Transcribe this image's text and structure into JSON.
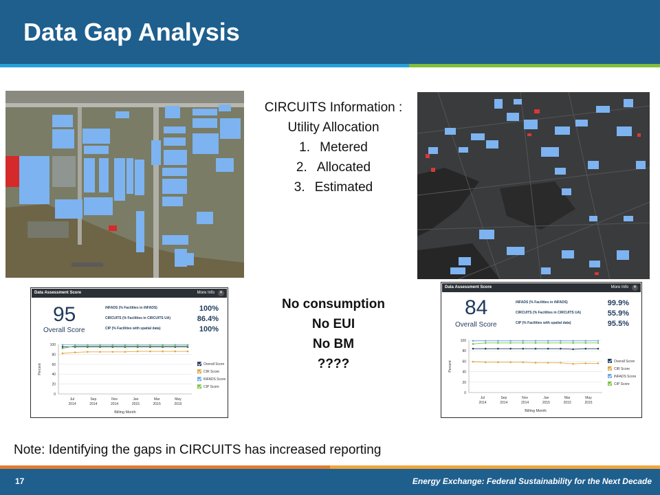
{
  "slide": {
    "title": "Data Gap Analysis",
    "circuits_heading": "CIRCUITS Information :",
    "circuits_subheading": "Utility Allocation",
    "allocation_items": [
      {
        "num": "1.",
        "label": "Metered"
      },
      {
        "num": "2.",
        "label": "Allocated"
      },
      {
        "num": "3.",
        "label": "Estimated"
      }
    ],
    "no_consumption_lines": [
      "No consumption",
      "No EUI",
      "No BM",
      "????"
    ],
    "note": "Note: Identifying the gaps in CIRCUITS has increased reporting",
    "page_number": "17",
    "footer_text": "Energy Exchange: Federal Sustainability for the Next Decade"
  },
  "colors": {
    "header_blue": "#1e5f8e",
    "stripe_blue": "#26a0d9",
    "stripe_green": "#7fbf3a",
    "footer_orange": "#e27b31",
    "building_blue": "#7db3f0",
    "overall_navy": "#1f3a5c",
    "cir_orange": "#e2a43a",
    "infads_blue": "#6aa7e6",
    "cip_green": "#7bc142"
  },
  "panels": [
    {
      "bar_title": "Data Assessment Score",
      "more_info": "More Info",
      "close": "×",
      "score": "95",
      "score_label": "Overall Score",
      "metrics": [
        {
          "label": "iNFADS (% Facilities in iNFADS)",
          "value": "100%"
        },
        {
          "label": "CIRCUITS (% Facilities in CIRCUITS UA)",
          "value": "86.4%"
        },
        {
          "label": "CIP (% Facilities with spatial data)",
          "value": "100%"
        }
      ]
    },
    {
      "bar_title": "Data Assessment Score",
      "more_info": "More Info",
      "close": "×",
      "score": "84",
      "score_label": "Overall Score",
      "metrics": [
        {
          "label": "iNFADS (% Facilities in iNFADS)",
          "value": "99.9%"
        },
        {
          "label": "CIRCUITS (% Facilities in CIRCUITS UA)",
          "value": "55.9%"
        },
        {
          "label": "CIP (% Facilities with spatial data)",
          "value": "95.5%"
        }
      ]
    }
  ],
  "chart_data": [
    {
      "type": "line",
      "title": "",
      "xlabel": "Billing Month",
      "ylabel": "Percent",
      "ylim": [
        0,
        100
      ],
      "yticks": [
        0,
        20,
        40,
        60,
        80,
        100
      ],
      "xtick_labels": [
        [
          "Jul",
          "2014"
        ],
        [
          "Sep",
          "2014"
        ],
        [
          "Nov",
          "2014"
        ],
        [
          "Jan",
          "2015"
        ],
        [
          "Mar",
          "2015"
        ],
        [
          "May",
          "2015"
        ]
      ],
      "legend_position": "right",
      "series": [
        {
          "name": "Overall Score",
          "color": "#1f3a5c",
          "values": [
            95,
            95,
            95,
            95,
            95,
            95,
            95,
            95,
            95,
            95,
            95
          ]
        },
        {
          "name": "CIR Score",
          "color": "#e2a43a",
          "values": [
            82,
            84,
            85,
            85,
            85,
            85,
            86,
            86,
            86,
            86,
            86
          ]
        },
        {
          "name": "iNFADS Score",
          "color": "#6aa7e6",
          "values": [
            99,
            99,
            99,
            99,
            99,
            99,
            99,
            99,
            99,
            99,
            99
          ]
        },
        {
          "name": "CIP Score",
          "color": "#7bc142",
          "values": [
            92,
            97,
            97,
            97,
            97,
            97,
            97,
            97,
            97,
            97,
            97
          ]
        }
      ]
    },
    {
      "type": "line",
      "title": "",
      "xlabel": "Billing Month",
      "ylabel": "Percent",
      "ylim": [
        0,
        100
      ],
      "yticks": [
        0,
        20,
        40,
        60,
        80,
        100
      ],
      "xtick_labels": [
        [
          "Jul",
          "2014"
        ],
        [
          "Sep",
          "2014"
        ],
        [
          "Nov",
          "2014"
        ],
        [
          "Jan",
          "2015"
        ],
        [
          "Mar",
          "2015"
        ],
        [
          "May",
          "2015"
        ]
      ],
      "legend_position": "right",
      "series": [
        {
          "name": "Overall Score",
          "color": "#1f3a5c",
          "values": [
            84,
            84,
            84,
            84,
            84,
            84,
            84,
            84,
            83,
            84,
            84
          ]
        },
        {
          "name": "CIR Score",
          "color": "#e2a43a",
          "values": [
            59,
            58,
            58,
            58,
            58,
            57,
            57,
            57,
            55,
            56,
            56
          ]
        },
        {
          "name": "iNFADS Score",
          "color": "#6aa7e6",
          "values": [
            99,
            99,
            99,
            99,
            99,
            99,
            99,
            99,
            99,
            99,
            99
          ]
        },
        {
          "name": "CIP Score",
          "color": "#7bc142",
          "values": [
            93,
            95,
            95,
            95,
            95,
            95,
            95,
            95,
            95,
            95,
            95
          ]
        }
      ]
    }
  ]
}
